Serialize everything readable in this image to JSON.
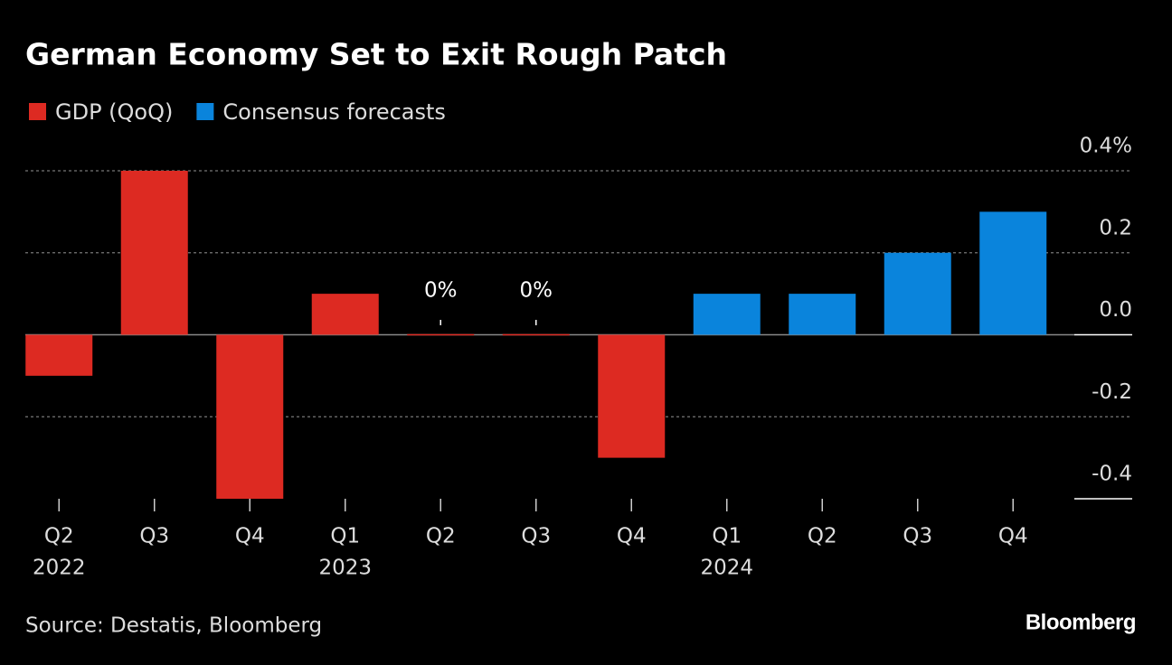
{
  "chart_data": {
    "type": "bar",
    "title": "German Economy Set to Exit Rough Patch",
    "categories": [
      "Q2",
      "Q3",
      "Q4",
      "Q1",
      "Q2",
      "Q3",
      "Q4",
      "Q1",
      "Q2",
      "Q3",
      "Q4"
    ],
    "year_labels": [
      "2022",
      null,
      null,
      "2023",
      null,
      null,
      null,
      "2024",
      null,
      null,
      null
    ],
    "series": [
      {
        "name": "GDP (QoQ)",
        "color": "#dd2a22",
        "values": [
          -0.1,
          0.4,
          -0.4,
          0.1,
          0,
          0,
          -0.3,
          null,
          null,
          null,
          null
        ],
        "value_labels": [
          null,
          null,
          null,
          null,
          "0%",
          "0%",
          null,
          null,
          null,
          null,
          null
        ]
      },
      {
        "name": "Consensus forecasts",
        "color": "#0a84dc",
        "values": [
          null,
          null,
          null,
          null,
          null,
          null,
          null,
          0.1,
          0.1,
          0.2,
          0.3
        ]
      }
    ],
    "ylim": [
      -0.4,
      0.4
    ],
    "yticks": [
      {
        "value": 0.4,
        "label": "0.4%"
      },
      0.2,
      {
        "value": 0,
        "label": "0.0"
      },
      -0.2,
      -0.4
    ],
    "grid": true,
    "source": "Source: Destatis, Bloomberg",
    "logo": "Bloomberg"
  }
}
